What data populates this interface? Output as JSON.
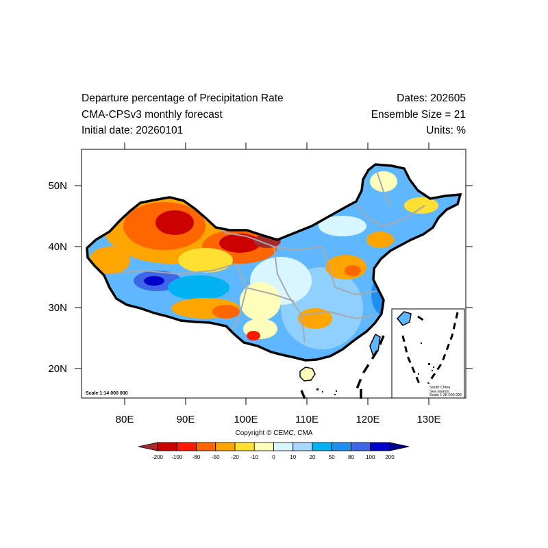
{
  "header": {
    "title": "Departure percentage of Precipitation Rate",
    "model": "CMA-CPSv3 monthly forecast",
    "initial_date": "Initial date: 20260101",
    "dates": "Dates: 202605",
    "ensemble": "Ensemble Size = 21",
    "units": "Units: %"
  },
  "map": {
    "scale_main": "Scale 1:14 000 000",
    "inset": {
      "line1": "South China",
      "line2": "Sea Islands",
      "line3": "Scale 1:28 000 000"
    },
    "lon_ticks": [
      "80E",
      "90E",
      "100E",
      "110E",
      "120E",
      "130E"
    ],
    "lat_ticks": [
      "50N",
      "40N",
      "30N",
      "20N"
    ]
  },
  "copyright": "Copyright © CEMC, CMA",
  "colorbar": {
    "labels": [
      "-200",
      "-100",
      "-80",
      "-50",
      "-20",
      "-10",
      "0",
      "10",
      "20",
      "50",
      "80",
      "100",
      "200"
    ],
    "colors": [
      "#a52a2a",
      "#cc0000",
      "#ff1a00",
      "#ff6600",
      "#ffa500",
      "#ffe033",
      "#ffffbb",
      "#d8f6ff",
      "#a6d8ff",
      "#00b3f0",
      "#1e8ef0",
      "#3d66e8",
      "#0000cc",
      "#00008b"
    ]
  }
}
